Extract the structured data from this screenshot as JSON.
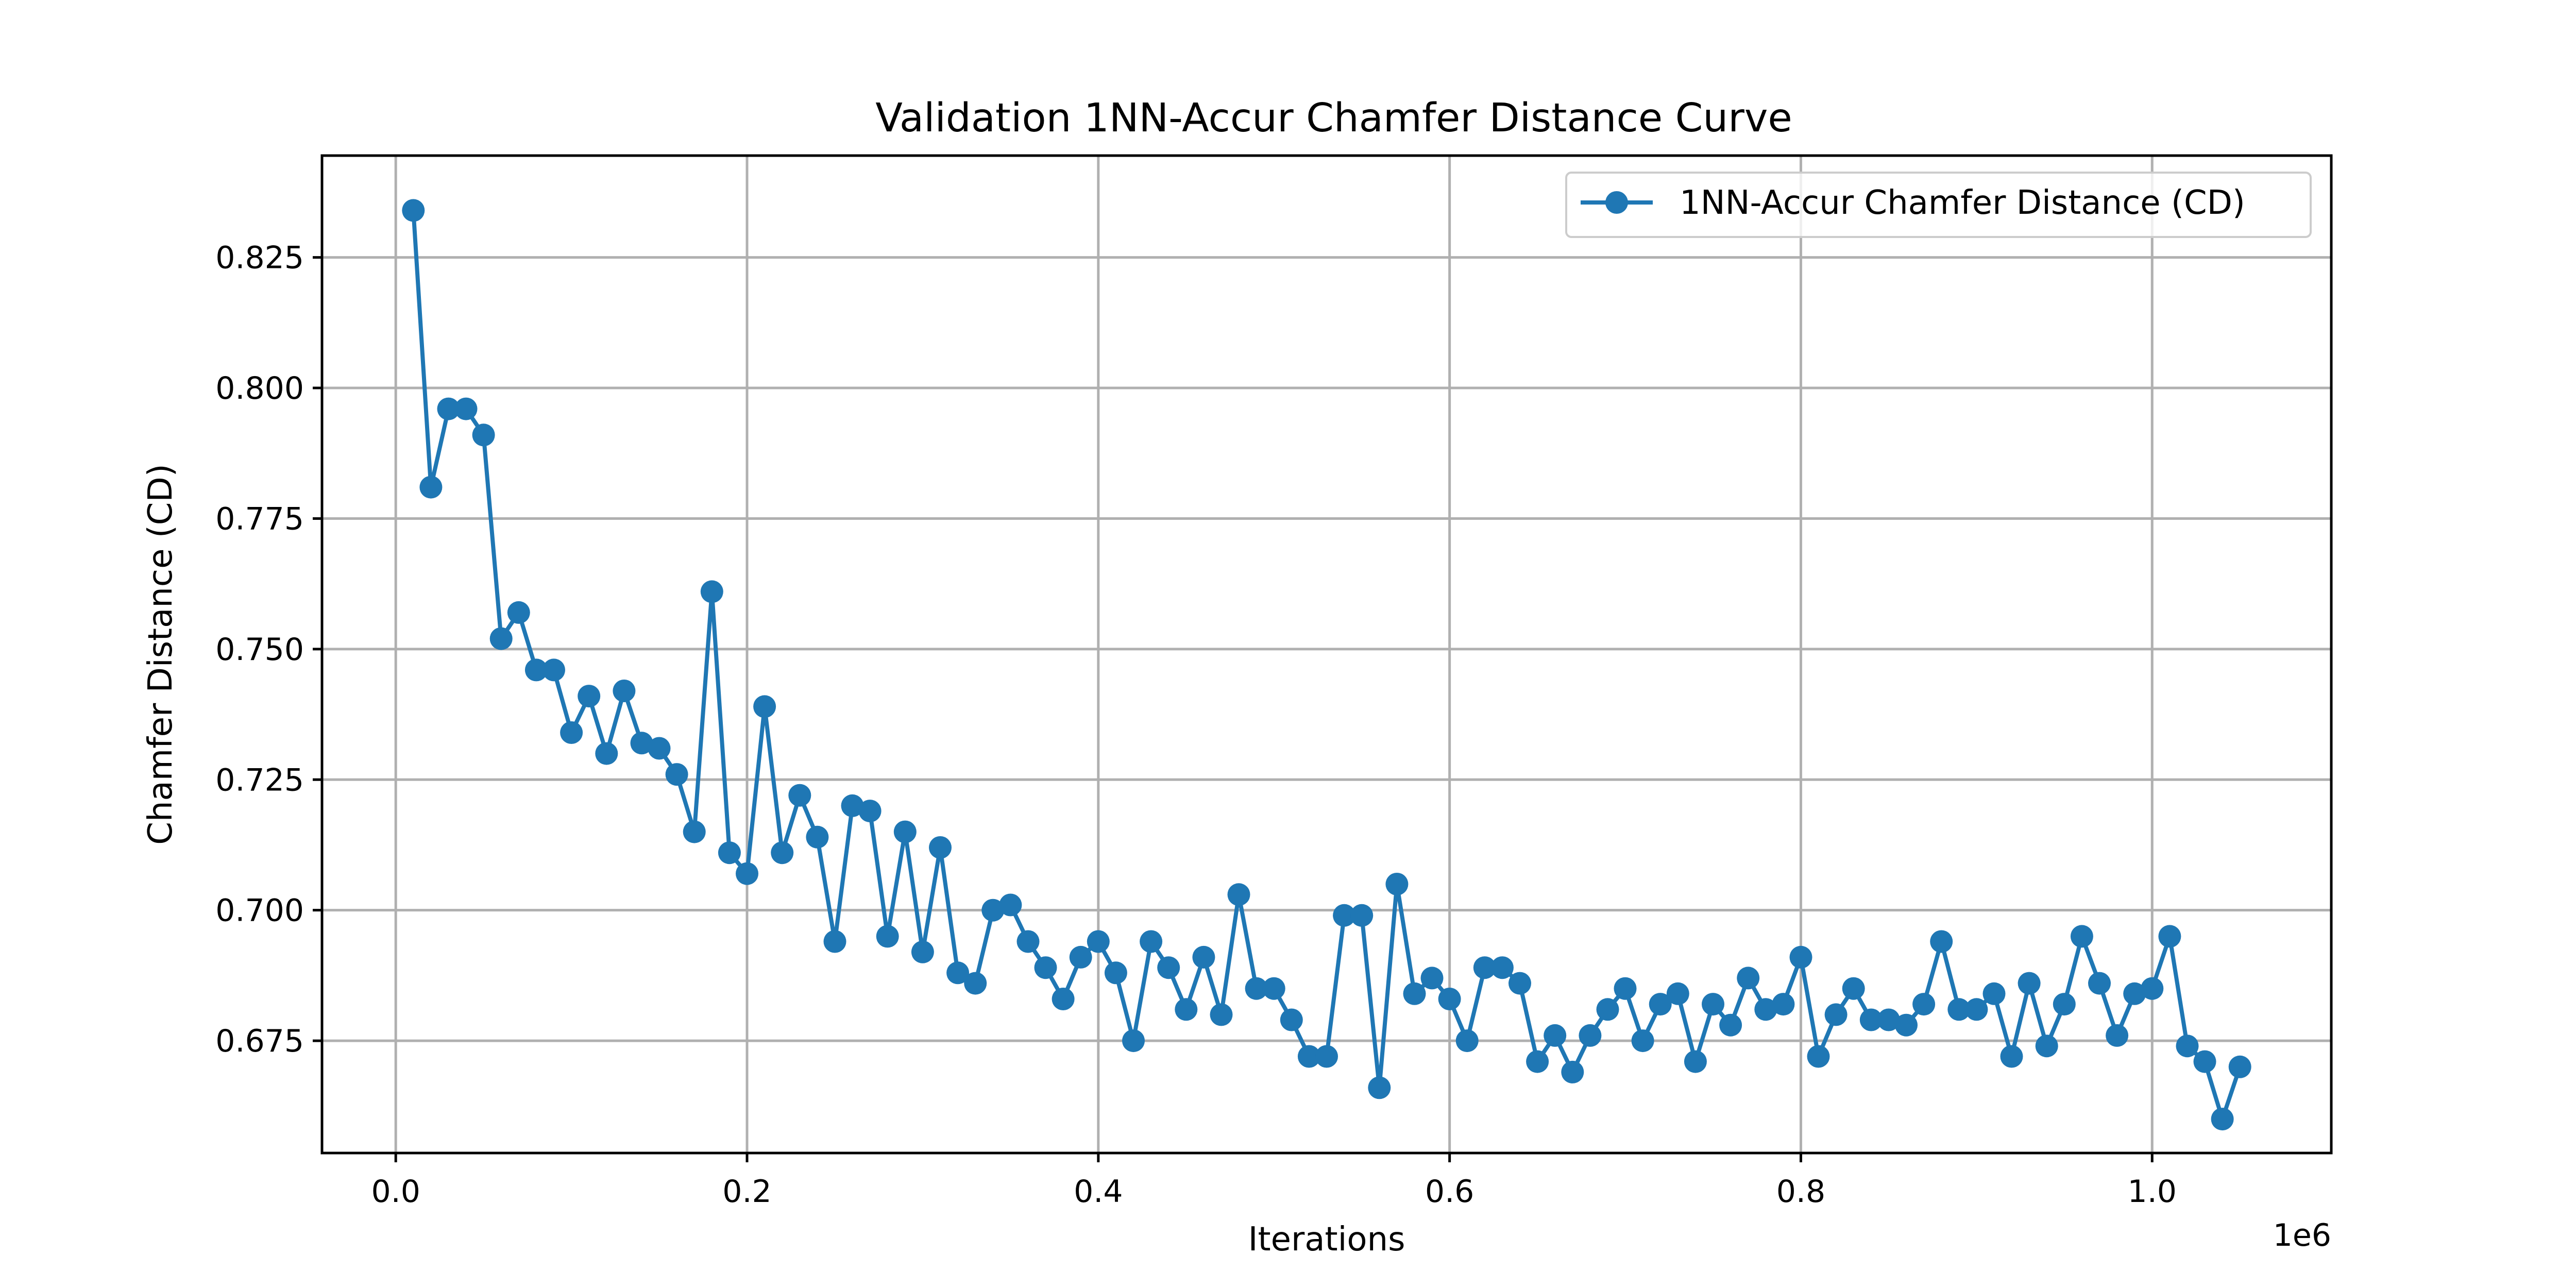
{
  "chart_data": {
    "type": "line",
    "title": "Validation 1NN-Accur Chamfer Distance Curve",
    "xlabel": "Iterations",
    "ylabel": "Chamfer Distance (CD)",
    "x_offset_label": "1e6",
    "xlim": [
      -0.042,
      1.102
    ],
    "ylim": [
      0.6535,
      0.8445
    ],
    "x_ticks": [
      0.0,
      0.2,
      0.4,
      0.6,
      0.8,
      1.0
    ],
    "x_tick_labels": [
      "0.0",
      "0.2",
      "0.4",
      "0.6",
      "0.8",
      "1.0"
    ],
    "y_ticks": [
      0.675,
      0.7,
      0.725,
      0.75,
      0.775,
      0.8,
      0.825
    ],
    "y_tick_labels": [
      "0.675",
      "0.700",
      "0.725",
      "0.750",
      "0.775",
      "0.800",
      "0.825"
    ],
    "grid": true,
    "legend_position": "top-right",
    "color": "#1f77b4",
    "series": [
      {
        "name": "1NN-Accur Chamfer Distance (CD)",
        "x": [
          0.01,
          0.02,
          0.03,
          0.04,
          0.05,
          0.06,
          0.07,
          0.08,
          0.09,
          0.1,
          0.11,
          0.12,
          0.13,
          0.14,
          0.15,
          0.16,
          0.17,
          0.18,
          0.19,
          0.2,
          0.21,
          0.22,
          0.23,
          0.24,
          0.25,
          0.26,
          0.27,
          0.28,
          0.29,
          0.3,
          0.31,
          0.32,
          0.33,
          0.34,
          0.35,
          0.36,
          0.37,
          0.38,
          0.39,
          0.4,
          0.41,
          0.42,
          0.43,
          0.44,
          0.45,
          0.46,
          0.47,
          0.48,
          0.49,
          0.5,
          0.51,
          0.52,
          0.53,
          0.54,
          0.55,
          0.56,
          0.57,
          0.58,
          0.59,
          0.6,
          0.61,
          0.62,
          0.63,
          0.64,
          0.65,
          0.66,
          0.67,
          0.68,
          0.69,
          0.7,
          0.71,
          0.72,
          0.73,
          0.74,
          0.75,
          0.76,
          0.77,
          0.78,
          0.79,
          0.8,
          0.81,
          0.82,
          0.83,
          0.84,
          0.85,
          0.86,
          0.87,
          0.88,
          0.89,
          0.9,
          0.91,
          0.92,
          0.93,
          0.94,
          0.95,
          0.96,
          0.97,
          0.98,
          0.99,
          1.0,
          1.01,
          1.02,
          1.03,
          1.04,
          1.05
        ],
        "y": [
          0.834,
          0.781,
          0.796,
          0.796,
          0.791,
          0.752,
          0.757,
          0.746,
          0.746,
          0.734,
          0.741,
          0.73,
          0.742,
          0.732,
          0.731,
          0.726,
          0.715,
          0.761,
          0.711,
          0.707,
          0.739,
          0.711,
          0.722,
          0.714,
          0.694,
          0.72,
          0.719,
          0.695,
          0.715,
          0.692,
          0.712,
          0.688,
          0.686,
          0.7,
          0.701,
          0.694,
          0.689,
          0.683,
          0.691,
          0.694,
          0.688,
          0.675,
          0.694,
          0.689,
          0.681,
          0.691,
          0.68,
          0.703,
          0.685,
          0.685,
          0.679,
          0.672,
          0.672,
          0.699,
          0.699,
          0.666,
          0.705,
          0.684,
          0.687,
          0.683,
          0.675,
          0.689,
          0.689,
          0.686,
          0.671,
          0.676,
          0.669,
          0.676,
          0.681,
          0.685,
          0.675,
          0.682,
          0.684,
          0.671,
          0.682,
          0.678,
          0.687,
          0.681,
          0.682,
          0.691,
          0.672,
          0.68,
          0.685,
          0.679,
          0.679,
          0.678,
          0.682,
          0.694,
          0.681,
          0.681,
          0.684,
          0.672,
          0.686,
          0.674,
          0.682,
          0.695,
          0.686,
          0.676,
          0.684,
          0.685,
          0.695,
          0.674,
          0.671,
          0.66,
          0.67
        ]
      }
    ]
  }
}
